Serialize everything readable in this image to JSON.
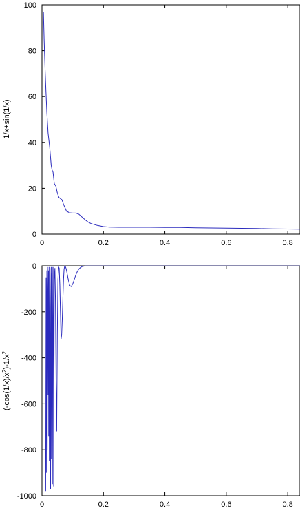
{
  "chart_data": [
    {
      "type": "line",
      "title": "",
      "xlabel": "",
      "ylabel": "1/x+sin(1/x)",
      "xlim": [
        0,
        0.84
      ],
      "ylim": [
        0,
        100
      ],
      "xticks": [
        "0",
        "0.2",
        "0.4",
        "0.6",
        "0.8"
      ],
      "xtick_values": [
        0,
        0.2,
        0.4,
        0.6,
        0.8
      ],
      "yticks": [
        "0",
        "20",
        "40",
        "60",
        "80",
        "100"
      ],
      "ytick_values": [
        0,
        20,
        40,
        60,
        80,
        100
      ],
      "grid": false,
      "line_color": "#2b2bbd",
      "series": [
        {
          "x": [
            0.0047,
            0.007,
            0.01,
            0.013,
            0.016,
            0.02,
            0.025,
            0.03,
            0.033,
            0.036,
            0.04,
            0.045,
            0.05,
            0.055,
            0.06,
            0.065,
            0.07,
            0.08,
            0.09,
            0.1,
            0.11,
            0.12,
            0.13,
            0.14,
            0.15,
            0.16,
            0.18,
            0.2,
            0.22,
            0.25,
            0.3,
            0.35,
            0.4,
            0.45,
            0.5,
            0.55,
            0.6,
            0.65,
            0.7,
            0.75,
            0.8,
            0.84
          ],
          "y": [
            97,
            85,
            72,
            62,
            53,
            44,
            38,
            30,
            28,
            27,
            22,
            21,
            18,
            16,
            15.5,
            15,
            13,
            10,
            9.3,
            9.2,
            9.2,
            8.7,
            7.5,
            6.3,
            5.3,
            4.6,
            3.8,
            3.3,
            3.1,
            3.0,
            3.0,
            3.0,
            2.9,
            2.9,
            2.8,
            2.7,
            2.6,
            2.55,
            2.45,
            2.35,
            2.25,
            2.15
          ]
        }
      ]
    },
    {
      "type": "line",
      "title": "",
      "xlabel": "",
      "ylabel": "(-cos(1/x)/x²)-1/x²",
      "xlim": [
        0,
        0.84
      ],
      "ylim": [
        -1000,
        0
      ],
      "xticks": [
        "0",
        "0.2",
        "0.4",
        "0.6",
        "0.8"
      ],
      "xtick_values": [
        0,
        0.2,
        0.4,
        0.6,
        0.8
      ],
      "yticks": [
        "-1000",
        "-800",
        "-600",
        "-400",
        "-200",
        "0"
      ],
      "ytick_values": [
        -1000,
        -800,
        -600,
        -400,
        -200,
        0
      ],
      "grid": false,
      "line_color": "#2b2bbd",
      "series": [
        {
          "x": [
            0.012,
            0.0135,
            0.015,
            0.016,
            0.017,
            0.018,
            0.019,
            0.02,
            0.021,
            0.022,
            0.023,
            0.024,
            0.025,
            0.026,
            0.027,
            0.028,
            0.029,
            0.03,
            0.031,
            0.032,
            0.033,
            0.034,
            0.035,
            0.036,
            0.037,
            0.038,
            0.04,
            0.042,
            0.044,
            0.046,
            0.048,
            0.05,
            0.052,
            0.054,
            0.056,
            0.058,
            0.06,
            0.062,
            0.064,
            0.066,
            0.068,
            0.07,
            0.072,
            0.074,
            0.076,
            0.078,
            0.08,
            0.085,
            0.09,
            0.095,
            0.1,
            0.105,
            0.11,
            0.115,
            0.12,
            0.125,
            0.13,
            0.135,
            0.14,
            0.145,
            0.15,
            0.16,
            0.17,
            0.18,
            0.2,
            0.22,
            0.25,
            0.3,
            0.35,
            0.4,
            0.5,
            0.6,
            0.7,
            0.84
          ],
          "y": [
            -980,
            -50,
            -900,
            -20,
            -800,
            -5,
            -150,
            -560,
            -20,
            -740,
            -5,
            -850,
            -380,
            -10,
            -620,
            -970,
            -180,
            -5,
            -840,
            -50,
            -5,
            -950,
            -400,
            -5,
            -220,
            -960,
            -60,
            -10,
            -150,
            -500,
            -720,
            -300,
            -60,
            -5,
            -10,
            -80,
            -200,
            -320,
            -300,
            -230,
            -140,
            -60,
            -15,
            -1,
            -2,
            -10,
            -20,
            -55,
            -85,
            -90,
            -80,
            -60,
            -40,
            -25,
            -14,
            -8,
            -4,
            -2,
            -1,
            -1,
            -1,
            -1,
            -1,
            -1,
            -1,
            -1,
            -1,
            -1,
            -1,
            -1,
            -1,
            -1,
            -1,
            -1
          ]
        }
      ]
    }
  ]
}
